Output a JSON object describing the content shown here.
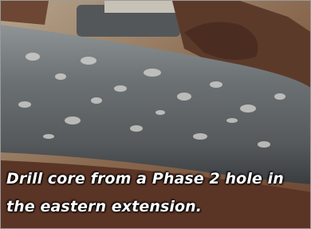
{
  "caption": {
    "lines": [
      "Drill core from a Phase 2 hole in",
      "the eastern extension."
    ]
  }
}
